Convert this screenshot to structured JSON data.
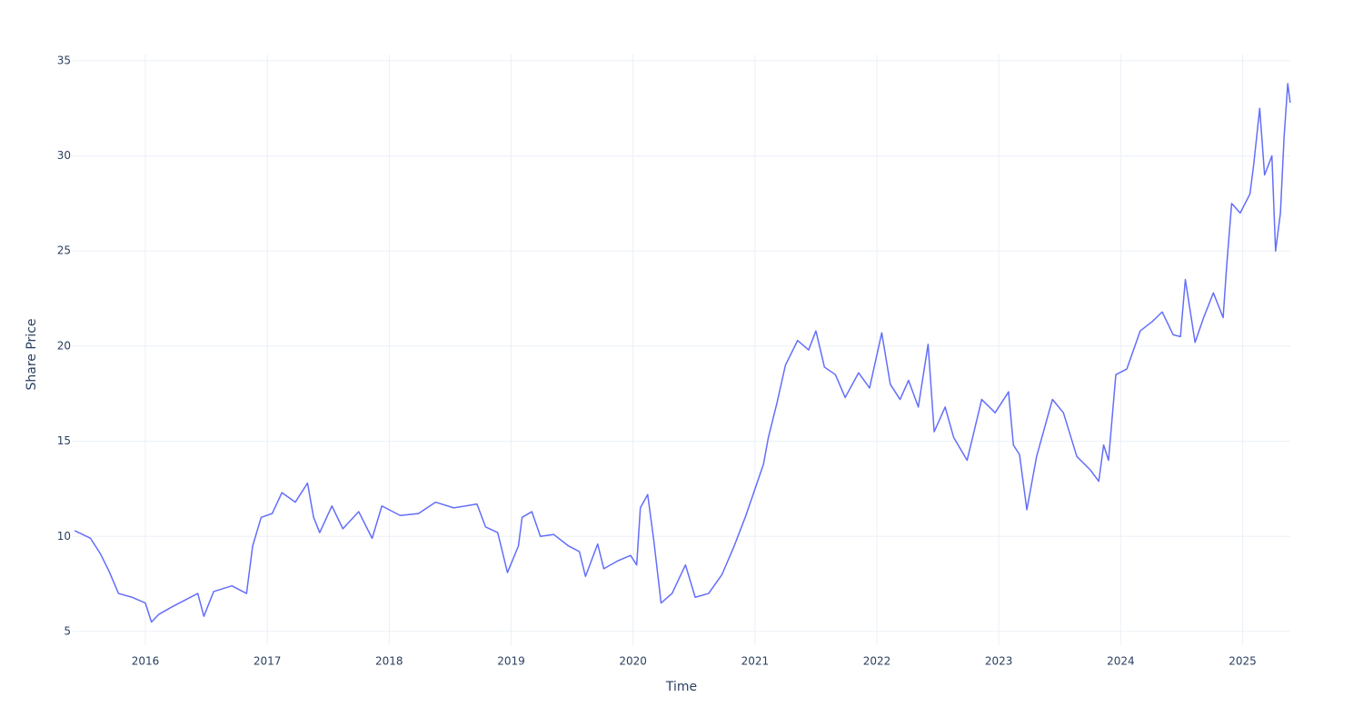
{
  "chart_data": {
    "type": "line",
    "x_label": "Time",
    "y_label": "Share Price",
    "x": [
      2015.42,
      2015.55,
      2015.63,
      2015.7,
      2015.78,
      2015.89,
      2016.0,
      2016.05,
      2016.11,
      2016.22,
      2016.34,
      2016.43,
      2016.48,
      2016.56,
      2016.71,
      2016.83,
      2016.88,
      2016.95,
      2017.04,
      2017.12,
      2017.23,
      2017.33,
      2017.38,
      2017.43,
      2017.53,
      2017.62,
      2017.75,
      2017.86,
      2017.94,
      2018.09,
      2018.24,
      2018.38,
      2018.53,
      2018.72,
      2018.79,
      2018.89,
      2018.97,
      2019.06,
      2019.09,
      2019.17,
      2019.24,
      2019.35,
      2019.47,
      2019.56,
      2019.61,
      2019.71,
      2019.76,
      2019.87,
      2019.98,
      2020.03,
      2020.06,
      2020.12,
      2020.17,
      2020.23,
      2020.32,
      2020.43,
      2020.51,
      2020.62,
      2020.73,
      2020.83,
      2020.92,
      2020.99,
      2021.07,
      2021.11,
      2021.18,
      2021.25,
      2021.35,
      2021.44,
      2021.5,
      2021.57,
      2021.66,
      2021.74,
      2021.85,
      2021.94,
      2022.04,
      2022.11,
      2022.19,
      2022.26,
      2022.34,
      2022.42,
      2022.47,
      2022.56,
      2022.63,
      2022.74,
      2022.86,
      2022.97,
      2023.08,
      2023.12,
      2023.17,
      2023.23,
      2023.31,
      2023.44,
      2023.53,
      2023.64,
      2023.75,
      2023.82,
      2023.86,
      2023.9,
      2023.96,
      2024.05,
      2024.16,
      2024.26,
      2024.34,
      2024.43,
      2024.49,
      2024.53,
      2024.61,
      2024.68,
      2024.76,
      2024.84,
      2024.87,
      2024.91,
      2024.98,
      2025.06,
      2025.09,
      2025.14,
      2025.18,
      2025.24,
      2025.27,
      2025.31,
      2025.34,
      2025.37,
      2025.39
    ],
    "series": [
      {
        "color": "#636efa",
        "values": [
          10.3,
          9.9,
          9.1,
          8.2,
          7.0,
          6.8,
          6.5,
          5.5,
          5.9,
          6.3,
          6.7,
          7.0,
          5.8,
          7.1,
          7.4,
          7.0,
          9.5,
          11.0,
          11.2,
          12.3,
          11.8,
          12.8,
          11.0,
          10.2,
          11.6,
          10.4,
          11.3,
          9.9,
          11.6,
          11.1,
          11.2,
          11.8,
          11.5,
          11.7,
          10.5,
          10.2,
          8.1,
          9.5,
          11.0,
          11.3,
          10.0,
          10.1,
          9.5,
          9.2,
          7.9,
          9.6,
          8.3,
          8.7,
          9.0,
          8.5,
          11.5,
          12.2,
          9.8,
          6.5,
          7.0,
          8.5,
          6.8,
          7.0,
          8.0,
          9.5,
          11.0,
          12.3,
          13.8,
          15.2,
          17.0,
          19.0,
          20.3,
          19.8,
          20.8,
          18.9,
          18.5,
          17.3,
          18.6,
          17.8,
          20.7,
          18.0,
          17.2,
          18.2,
          16.8,
          20.1,
          15.5,
          16.8,
          15.2,
          14.0,
          17.2,
          16.5,
          17.6,
          14.8,
          14.3,
          11.4,
          14.2,
          17.2,
          16.5,
          14.2,
          13.5,
          12.9,
          14.8,
          14.0,
          18.5,
          18.8,
          20.8,
          21.3,
          21.8,
          20.6,
          20.5,
          23.5,
          20.2,
          21.5,
          22.8,
          21.5,
          24.3,
          27.5,
          27.0,
          28.0,
          29.5,
          32.5,
          29.0,
          30.0,
          25.0,
          27.0,
          31.0,
          33.8,
          32.8
        ]
      }
    ],
    "xlim": [
      2015.404,
      2025.391
    ],
    "ylim": [
      4.28,
      35.33
    ],
    "xticks": [
      2016,
      2017,
      2018,
      2019,
      2020,
      2021,
      2022,
      2023,
      2024,
      2025
    ],
    "yticks": [
      5,
      10,
      15,
      20,
      25,
      30,
      35
    ],
    "grid": true
  }
}
